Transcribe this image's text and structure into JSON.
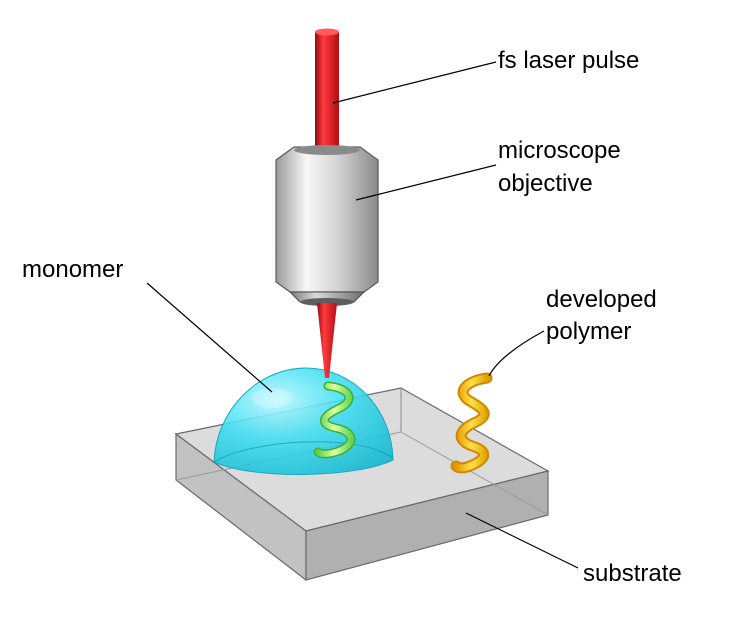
{
  "labels": {
    "laser": "fs laser pulse",
    "objective_line1": "microscope",
    "objective_line2": "objective",
    "monomer": "monomer",
    "polymer_line1": "developed",
    "polymer_line2": "polymer",
    "substrate": "substrate"
  },
  "colors": {
    "laser": "#d8141b",
    "monomer": "#35dff2",
    "polymer": "#f5c400",
    "writing_helix": "#9ff07c",
    "substrate": "#c9c9c9",
    "objective": "#cfcfcf"
  }
}
